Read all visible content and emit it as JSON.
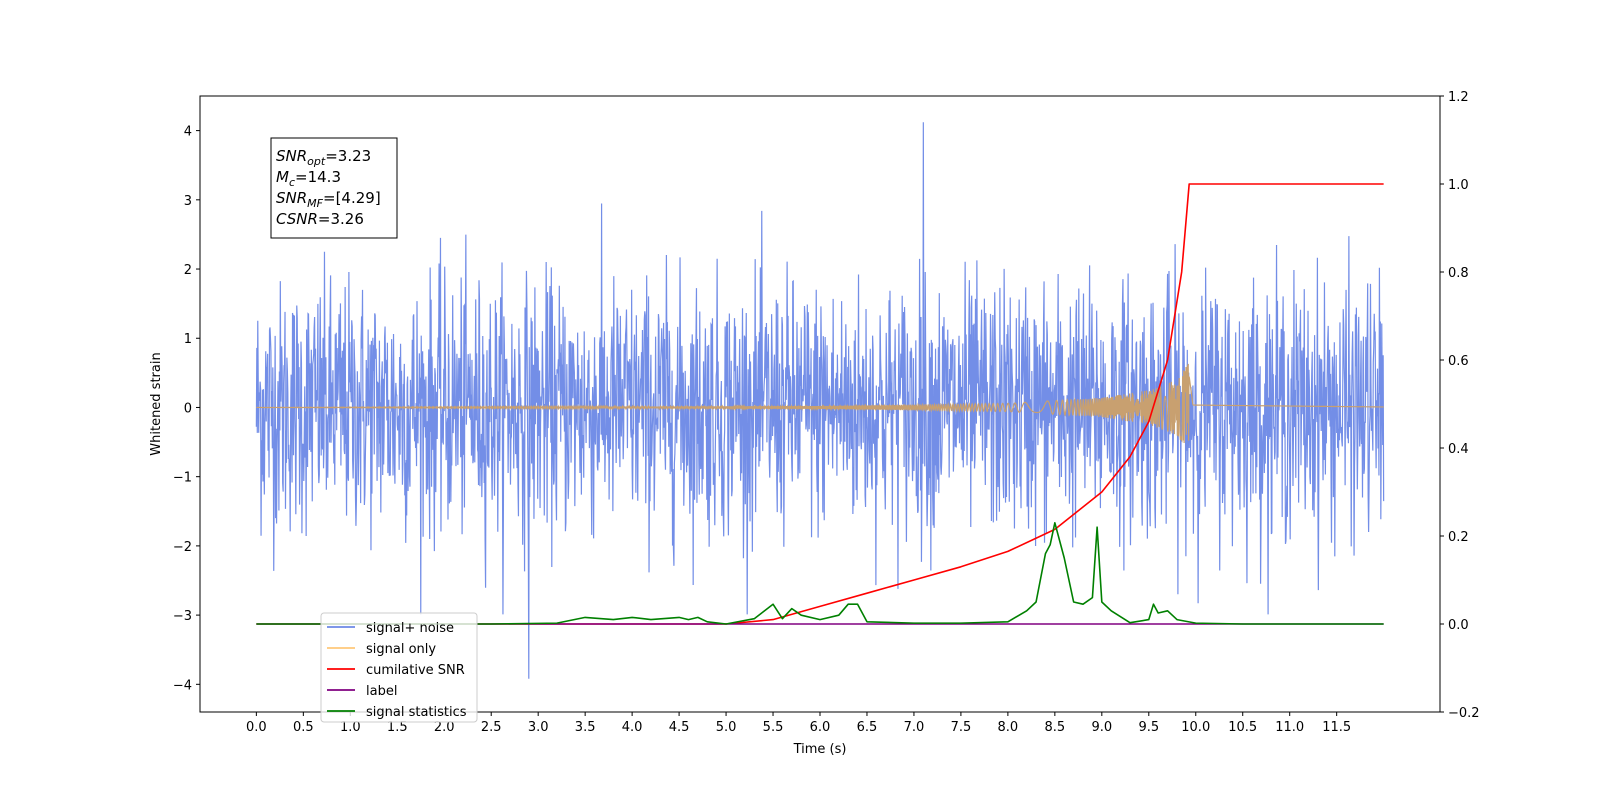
{
  "chart_data": {
    "type": "line",
    "xlabel": "Time (s)",
    "ylabel": "Whitened strain",
    "ylabel_right": "",
    "xlim": [
      -0.6,
      12.6
    ],
    "ylim": [
      -4.4,
      4.5
    ],
    "ylim_right": [
      -0.2,
      1.2
    ],
    "x_ticks": [
      "0.0",
      "0.5",
      "1.0",
      "1.5",
      "2.0",
      "2.5",
      "3.0",
      "3.5",
      "4.0",
      "4.5",
      "5.0",
      "5.5",
      "6.0",
      "6.5",
      "7.0",
      "7.5",
      "8.0",
      "8.5",
      "9.0",
      "9.5",
      "10.0",
      "10.5",
      "11.0",
      "11.5"
    ],
    "x_tick_values": [
      0.0,
      0.5,
      1.0,
      1.5,
      2.0,
      2.5,
      3.0,
      3.5,
      4.0,
      4.5,
      5.0,
      5.5,
      6.0,
      6.5,
      7.0,
      7.5,
      8.0,
      8.5,
      9.0,
      9.5,
      10.0,
      10.5,
      11.0,
      11.5
    ],
    "y_ticks": [
      "4",
      "3",
      "2",
      "1",
      "0",
      "−1",
      "−2",
      "−3",
      "−4"
    ],
    "y_tick_values": [
      4,
      3,
      2,
      1,
      0,
      -1,
      -2,
      -3,
      -4
    ],
    "y_right_ticks": [
      "1.2",
      "1.0",
      "0.8",
      "0.6",
      "0.4",
      "0.2",
      "0.0",
      "−0.2"
    ],
    "y_right_tick_values": [
      1.2,
      1.0,
      0.8,
      0.6,
      0.4,
      0.2,
      0.0,
      -0.2
    ],
    "grid": false,
    "legend_placement": "lower-left",
    "annotation": {
      "lines": [
        {
          "main": "SNR",
          "sub": "opt",
          "rest": "=3.23"
        },
        {
          "main": "M",
          "sub": "c",
          "rest": "=14.3"
        },
        {
          "main": "SNR",
          "sub": "MF",
          "rest": "=[4.29]"
        },
        {
          "main": "CSNR",
          "sub": "",
          "rest": "=3.26"
        }
      ]
    },
    "legend": [
      {
        "label": "signal+ noise",
        "color": "#6b88e6"
      },
      {
        "label": "signal only",
        "color": "#ffc87a"
      },
      {
        "label": "cumilative SNR",
        "color": "#ff0000"
      },
      {
        "label": "label",
        "color": "#800080"
      },
      {
        "label": "signal statistics",
        "color": "#008000"
      }
    ],
    "series": [
      {
        "name": "signal+ noise",
        "axis": "left",
        "color": "#6b88e6",
        "kind": "noise",
        "x_range": [
          0.0,
          12.0
        ],
        "envelope": 2.6,
        "peak_max": 4.12,
        "peak_min": -3.92
      },
      {
        "name": "signal only",
        "axis": "left",
        "color": "#c8a070",
        "kind": "chirp",
        "x_range": [
          0.0,
          12.0
        ],
        "merger_time": 9.93,
        "amplitude_envelope": [
          [
            0.0,
            0.0
          ],
          [
            6.0,
            0.02
          ],
          [
            8.0,
            0.06
          ],
          [
            9.0,
            0.14
          ],
          [
            9.5,
            0.25
          ],
          [
            9.8,
            0.4
          ],
          [
            9.93,
            0.65
          ],
          [
            9.97,
            0.05
          ],
          [
            12.0,
            0.01
          ]
        ]
      },
      {
        "name": "cumilative SNR",
        "axis": "right",
        "color": "#ff0000",
        "x": [
          0.0,
          5.0,
          5.5,
          6.0,
          6.5,
          7.0,
          7.5,
          8.0,
          8.5,
          9.0,
          9.3,
          9.5,
          9.7,
          9.85,
          9.93,
          10.0,
          12.0
        ],
        "y": [
          0.0,
          0.0,
          0.01,
          0.04,
          0.07,
          0.1,
          0.13,
          0.165,
          0.215,
          0.3,
          0.38,
          0.46,
          0.6,
          0.8,
          1.0,
          1.0,
          1.0
        ]
      },
      {
        "name": "label",
        "axis": "right",
        "color": "#800080",
        "x": [
          0.0,
          12.0
        ],
        "y": [
          0.0,
          0.0
        ]
      },
      {
        "name": "signal statistics",
        "axis": "right",
        "color": "#008000",
        "x": [
          0.0,
          2.5,
          3.2,
          3.5,
          3.8,
          4.0,
          4.2,
          4.5,
          4.6,
          4.7,
          4.8,
          5.0,
          5.3,
          5.5,
          5.6,
          5.7,
          5.8,
          6.0,
          6.2,
          6.3,
          6.4,
          6.5,
          7.0,
          7.5,
          8.0,
          8.2,
          8.3,
          8.4,
          8.45,
          8.5,
          8.6,
          8.7,
          8.8,
          8.9,
          8.95,
          9.0,
          9.1,
          9.3,
          9.5,
          9.55,
          9.6,
          9.7,
          9.8,
          10.0,
          10.5,
          11.0,
          12.0
        ],
        "y": [
          0.0,
          0.0,
          0.002,
          0.015,
          0.01,
          0.015,
          0.01,
          0.015,
          0.01,
          0.015,
          0.005,
          0.0,
          0.012,
          0.045,
          0.012,
          0.035,
          0.02,
          0.01,
          0.02,
          0.045,
          0.045,
          0.005,
          0.002,
          0.002,
          0.005,
          0.03,
          0.05,
          0.16,
          0.18,
          0.23,
          0.15,
          0.05,
          0.045,
          0.06,
          0.22,
          0.05,
          0.03,
          0.003,
          0.01,
          0.045,
          0.025,
          0.03,
          0.01,
          0.002,
          0.0,
          0.0,
          0.0
        ]
      }
    ]
  }
}
